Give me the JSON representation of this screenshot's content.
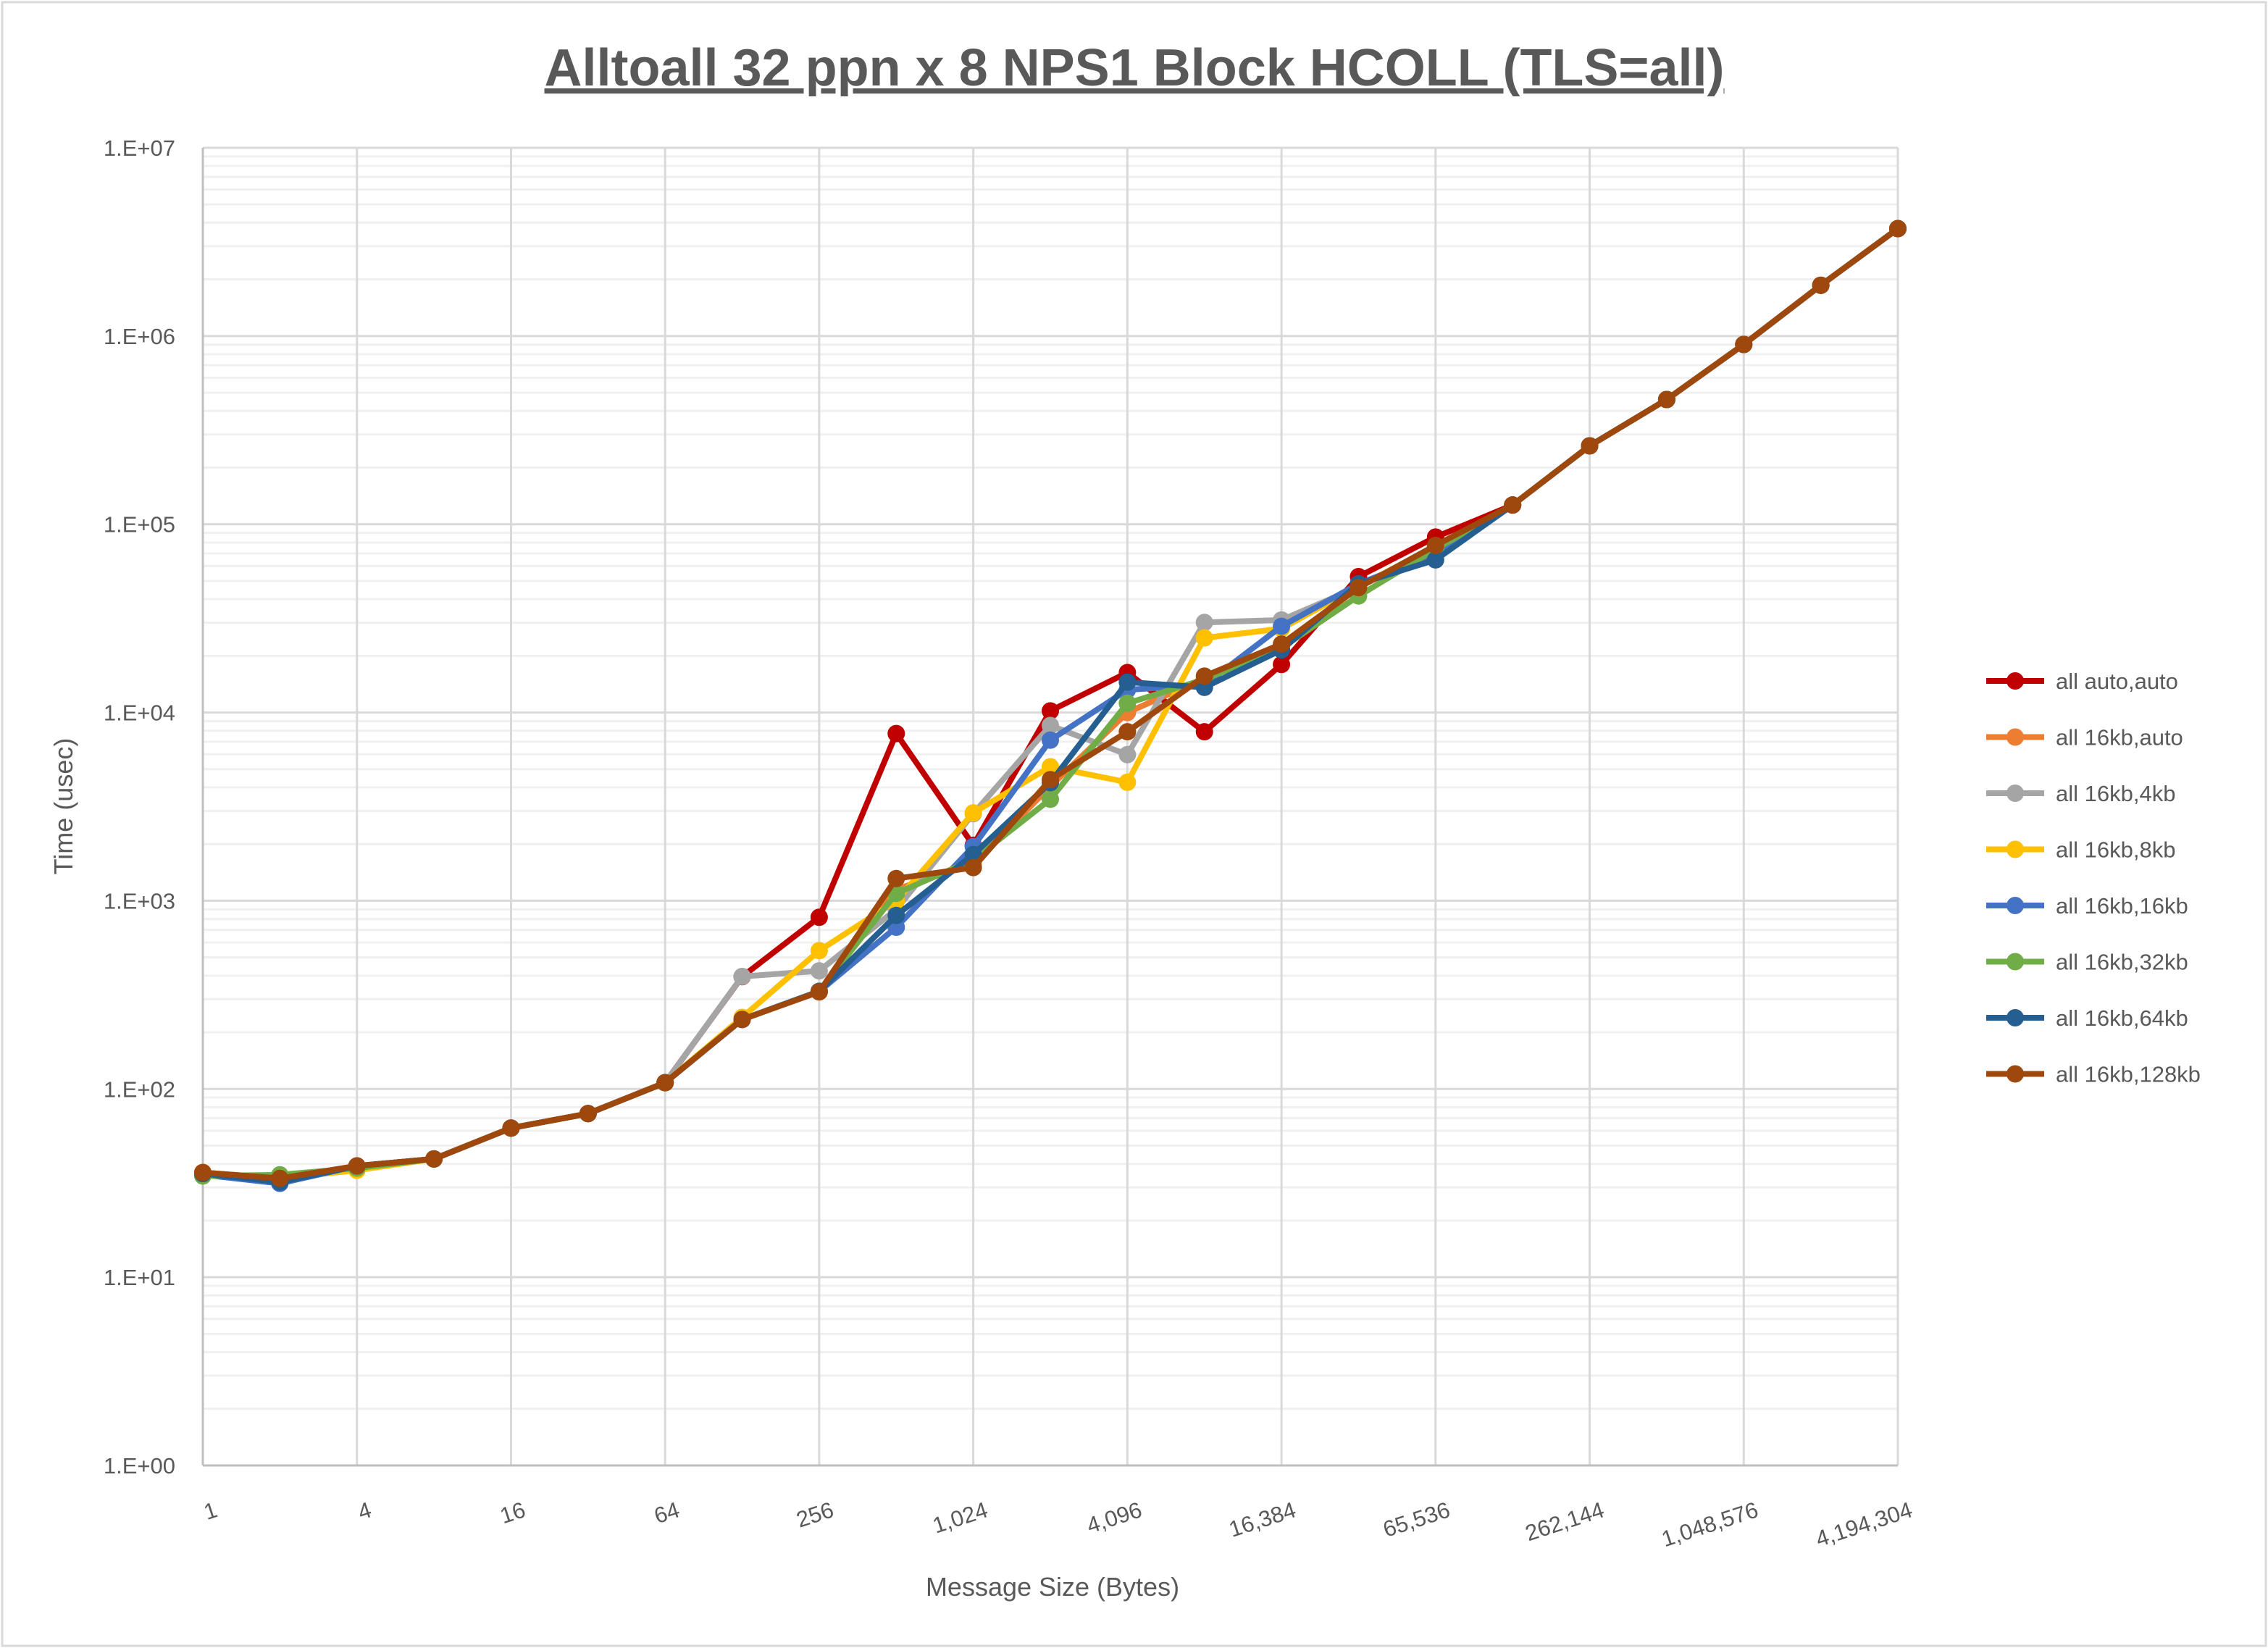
{
  "chart_data": {
    "type": "line",
    "title": "Alltoall 32 ppn x 8 NPS1 Block HCOLL (TLS=all)",
    "xlabel": "Message Size (Bytes)",
    "ylabel": "Time (usec)",
    "x_scale": "log2",
    "y_scale": "log10",
    "xlim": [
      1,
      4194304
    ],
    "ylim": [
      1,
      10000000
    ],
    "grid": true,
    "legend_position": "right",
    "x_tick_labels": [
      "1",
      "4",
      "16",
      "64",
      "256",
      "1,024",
      "4,096",
      "16,384",
      "65,536",
      "262,144",
      "1,048,576",
      "4,194,304"
    ],
    "y_tick_labels": [
      "1.E+00",
      "1.E+01",
      "1.E+02",
      "1.E+03",
      "1.E+04",
      "1.E+05",
      "1.E+06",
      "1.E+07"
    ],
    "x": [
      1,
      2,
      4,
      8,
      16,
      32,
      64,
      128,
      256,
      512,
      1024,
      2048,
      4096,
      8192,
      16384,
      32768,
      65536,
      131072,
      262144,
      524288,
      1048576,
      2097152,
      4194304
    ],
    "series": [
      {
        "name": "all auto,auto",
        "color": "#C00000",
        "values": [
          36,
          33.5,
          39,
          42.5,
          62,
          74,
          108,
          395,
          817,
          7730,
          1970,
          10200,
          16300,
          7900,
          18000,
          52700,
          85500,
          126500,
          261000,
          460000,
          902000,
          1860000,
          3720000
        ]
      },
      {
        "name": "all 16kb,auto",
        "color": "#ED7D31",
        "values": [
          36,
          33.5,
          39,
          42.5,
          62,
          74,
          108,
          234,
          330,
          1150,
          1570,
          4050,
          10000,
          15200,
          22600,
          46100,
          76000,
          126500,
          261000,
          460000,
          902000,
          1860000,
          3720000
        ]
      },
      {
        "name": "all 16kb,4kb",
        "color": "#A5A5A5",
        "values": [
          36,
          33.5,
          39,
          42.5,
          62,
          74,
          108,
          396,
          424,
          900,
          2900,
          8530,
          5970,
          30100,
          31000,
          46500,
          75500,
          126500,
          261000,
          460000,
          902000,
          1860000,
          3720000
        ]
      },
      {
        "name": "all 16kb,8kb",
        "color": "#FFC000",
        "values": [
          36,
          33.5,
          37,
          42.5,
          62,
          74,
          108,
          240,
          543,
          1000,
          2930,
          5150,
          4260,
          24900,
          27900,
          46800,
          76000,
          126500,
          261000,
          460000,
          902000,
          1860000,
          3720000
        ]
      },
      {
        "name": "all 16kb,16kb",
        "color": "#4472C4",
        "values": [
          35,
          31.5,
          39,
          42.5,
          62,
          74,
          108,
          234,
          330,
          723,
          1940,
          7130,
          13200,
          14000,
          28700,
          48200,
          70000,
          126500,
          261000,
          460000,
          902000,
          1860000,
          3720000
        ]
      },
      {
        "name": "all 16kb,32kb",
        "color": "#70AD47",
        "values": [
          34.5,
          35,
          38,
          42.5,
          62,
          74,
          108,
          234,
          330,
          1094,
          1650,
          3460,
          11200,
          15000,
          22000,
          41600,
          73800,
          126500,
          261000,
          460000,
          902000,
          1860000,
          3720000
        ]
      },
      {
        "name": "all 16kb,64kb",
        "color": "#255E91",
        "values": [
          35.5,
          32,
          39,
          42.5,
          62,
          74,
          108,
          234,
          330,
          835,
          1760,
          4240,
          14500,
          13600,
          21500,
          48200,
          64700,
          126500,
          261000,
          460000,
          902000,
          1860000,
          3720000
        ]
      },
      {
        "name": "all 16kb,128kb",
        "color": "#9E480E",
        "values": [
          36,
          33.5,
          39,
          42.5,
          62,
          74,
          108,
          234,
          328,
          1312,
          1500,
          4400,
          7900,
          15600,
          23100,
          46100,
          77200,
          126500,
          261000,
          460000,
          902000,
          1860000,
          3720000
        ]
      }
    ]
  }
}
